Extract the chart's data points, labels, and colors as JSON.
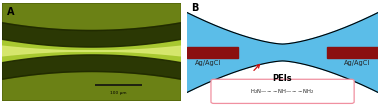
{
  "fig_width": 3.78,
  "fig_height": 1.05,
  "dpi": 100,
  "panel_A_label": "A",
  "panel_B_label": "B",
  "electrode_label_left": "Ag/AgCl",
  "electrode_label_right": "Ag/AgCl",
  "channel_label": "PEIs",
  "bg_color": "#ffffff",
  "micro_channel_bg": "#a8c830",
  "channel_blue": "#5bbde8",
  "electrode_color": "#8b1010",
  "arrow_color": "#cc1111",
  "molecule_box_edgecolor": "#f090a0",
  "scale_bar_color": "#111111",
  "label_fontsize": 7,
  "peis_fontsize": 6,
  "electrode_text_fontsize": 4.8,
  "scale_text": "100 μm"
}
